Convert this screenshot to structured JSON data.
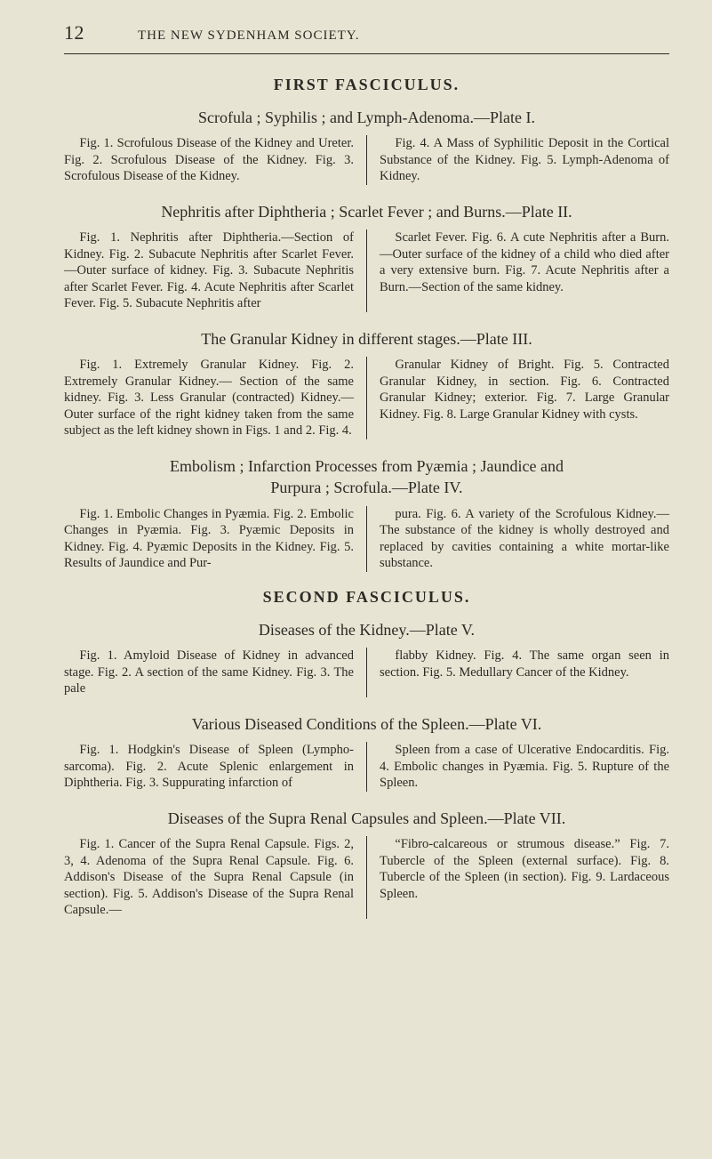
{
  "page_number": "12",
  "running_title": "THE NEW SYDENHAM SOCIETY.",
  "fasc1_head": "FIRST FASCICULUS.",
  "fasc2_head": "SECOND FASCICULUS.",
  "p1_title": "Scrofula ; Syphilis ; and Lymph-Adenoma.—Plate I.",
  "p1_left": "Fig. 1. Scrofulous Disease of the Kidney and Ureter. Fig. 2. Scrofulous Disease of the Kidney. Fig. 3. Scrofulous Disease of the Kidney.",
  "p1_right": "Fig. 4. A Mass of Syphilitic Deposit in the Cortical Substance of the Kidney. Fig. 5. Lymph-Adenoma of Kidney.",
  "p2_title": "Nephritis after Diphtheria ; Scarlet Fever ; and Burns.—Plate II.",
  "p2_left": "Fig. 1. Nephritis after Diphtheria.—Section of Kidney. Fig. 2. Subacute Nephritis after Scarlet Fever.—Outer surface of kidney. Fig. 3. Subacute Nephritis after Scarlet Fever. Fig. 4. Acute Nephritis after Scarlet Fever. Fig. 5. Subacute Nephritis after",
  "p2_right": "Scarlet Fever. Fig. 6. A cute Nephritis after a Burn.—Outer surface of the kidney of a child who died after a very extensive burn. Fig. 7. Acute Nephritis after a Burn.—Section of the same kidney.",
  "p3_title": "The Granular Kidney in different stages.—Plate III.",
  "p3_left": "Fig. 1. Extremely Granular Kidney. Fig. 2. Extremely Granular Kidney.— Section of the same kidney. Fig. 3. Less Granular (contracted) Kidney.— Outer surface of the right kidney taken from the same subject as the left kidney shown in Figs. 1 and 2. Fig. 4.",
  "p3_right": "Granular Kidney of Bright. Fig. 5. Contracted Granular Kidney, in section. Fig. 6. Contracted Granular Kidney; exterior. Fig. 7. Large Granular Kidney. Fig. 8. Large Granular Kidney with cysts.",
  "p4_title_l1": "Embolism ; Infarction Processes from Pyæmia ; Jaundice and",
  "p4_title_l2": "Purpura ; Scrofula.—Plate IV.",
  "p4_left": "Fig. 1. Embolic Changes in Pyæmia. Fig. 2. Embolic Changes in Pyæmia. Fig. 3. Pyæmic Deposits in Kidney. Fig. 4. Pyæmic Deposits in the Kidney. Fig. 5. Results of Jaundice and Pur-",
  "p4_right": "pura. Fig. 6. A variety of the Scrofulous Kidney.—The substance of the kidney is wholly destroyed and replaced by cavities containing a white mortar-like substance.",
  "p5_title": "Diseases of the Kidney.—Plate V.",
  "p5_left": "Fig. 1. Amyloid Disease of Kidney in advanced stage. Fig. 2. A section of the same Kidney. Fig. 3. The pale",
  "p5_right": "flabby Kidney. Fig. 4. The same organ seen in section. Fig. 5. Medullary Cancer of the Kidney.",
  "p6_title": "Various Diseased Conditions of the Spleen.—Plate VI.",
  "p6_left": "Fig. 1. Hodgkin's Disease of Spleen (Lympho-sarcoma). Fig. 2. Acute Splenic enlargement in Diphtheria. Fig. 3. Suppurating infarction of",
  "p6_right": "Spleen from a case of Ulcerative Endocarditis. Fig. 4. Embolic changes in Pyæmia. Fig. 5. Rupture of the Spleen.",
  "p7_title": "Diseases of the Supra Renal Capsules and Spleen.—Plate VII.",
  "p7_left": "Fig. 1. Cancer of the Supra Renal Capsule. Figs. 2, 3, 4. Adenoma of the Supra Renal Capsule. Fig. 6. Addison's Disease of the Supra Renal Capsule (in section). Fig. 5. Addison's Disease of the Supra Renal Capsule.—",
  "p7_right": "“Fibro-calcareous or strumous disease.” Fig. 7. Tubercle of the Spleen (external surface). Fig. 8. Tubercle of the Spleen (in section). Fig. 9. Lardaceous Spleen."
}
